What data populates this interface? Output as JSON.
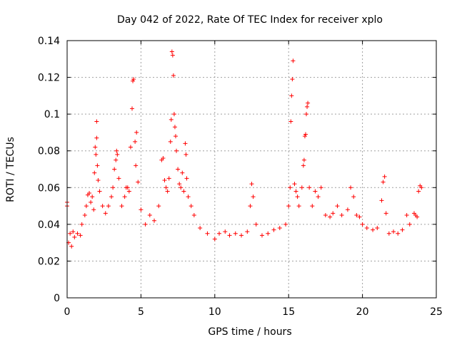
{
  "chart_data": {
    "type": "scatter",
    "title": "Day 042 of 2022, Rate Of TEC Index for receiver xplo",
    "xlabel": "GPS time / hours",
    "ylabel": "ROTI / TECUs",
    "xlim": [
      0,
      25
    ],
    "ylim": [
      0,
      0.14
    ],
    "x_ticks": [
      "0",
      "5",
      "10",
      "15",
      "20",
      "25"
    ],
    "y_ticks": [
      "0",
      "0.02",
      "0.04",
      "0.06",
      "0.08",
      "0.1",
      "0.12",
      "0.14"
    ],
    "grid": true,
    "marker": "plus",
    "color": "#ff0000",
    "series": [
      {
        "points": [
          [
            0.0,
            0.052
          ],
          [
            0.0,
            0.05
          ],
          [
            0.1,
            0.03
          ],
          [
            0.2,
            0.035
          ],
          [
            0.3,
            0.028
          ],
          [
            0.4,
            0.036
          ],
          [
            0.5,
            0.033
          ],
          [
            0.7,
            0.035
          ],
          [
            0.9,
            0.034
          ],
          [
            1.0,
            0.04
          ],
          [
            1.2,
            0.045
          ],
          [
            1.3,
            0.05
          ],
          [
            1.4,
            0.056
          ],
          [
            1.5,
            0.057
          ],
          [
            1.6,
            0.052
          ],
          [
            1.7,
            0.055
          ],
          [
            1.8,
            0.048
          ],
          [
            1.85,
            0.068
          ],
          [
            1.9,
            0.082
          ],
          [
            1.95,
            0.078
          ],
          [
            2.0,
            0.096
          ],
          [
            2.0,
            0.087
          ],
          [
            2.05,
            0.072
          ],
          [
            2.1,
            0.064
          ],
          [
            2.2,
            0.058
          ],
          [
            2.4,
            0.05
          ],
          [
            2.6,
            0.046
          ],
          [
            2.8,
            0.05
          ],
          [
            3.0,
            0.055
          ],
          [
            3.1,
            0.06
          ],
          [
            3.2,
            0.07
          ],
          [
            3.3,
            0.075
          ],
          [
            3.35,
            0.08
          ],
          [
            3.4,
            0.078
          ],
          [
            3.5,
            0.065
          ],
          [
            3.7,
            0.05
          ],
          [
            3.9,
            0.055
          ],
          [
            4.0,
            0.06
          ],
          [
            4.1,
            0.06
          ],
          [
            4.2,
            0.058
          ],
          [
            4.3,
            0.082
          ],
          [
            4.4,
            0.103
          ],
          [
            4.45,
            0.118
          ],
          [
            4.5,
            0.119
          ],
          [
            4.6,
            0.085
          ],
          [
            4.65,
            0.072
          ],
          [
            4.7,
            0.09
          ],
          [
            4.8,
            0.063
          ],
          [
            5.0,
            0.048
          ],
          [
            5.3,
            0.04
          ],
          [
            5.6,
            0.045
          ],
          [
            5.9,
            0.042
          ],
          [
            6.2,
            0.05
          ],
          [
            6.4,
            0.075
          ],
          [
            6.5,
            0.076
          ],
          [
            6.6,
            0.064
          ],
          [
            6.7,
            0.06
          ],
          [
            6.8,
            0.058
          ],
          [
            6.9,
            0.065
          ],
          [
            7.0,
            0.085
          ],
          [
            7.05,
            0.097
          ],
          [
            7.1,
            0.134
          ],
          [
            7.15,
            0.132
          ],
          [
            7.2,
            0.121
          ],
          [
            7.25,
            0.1
          ],
          [
            7.3,
            0.093
          ],
          [
            7.35,
            0.088
          ],
          [
            7.4,
            0.08
          ],
          [
            7.5,
            0.07
          ],
          [
            7.6,
            0.062
          ],
          [
            7.7,
            0.06
          ],
          [
            7.8,
            0.068
          ],
          [
            7.9,
            0.058
          ],
          [
            8.0,
            0.084
          ],
          [
            8.05,
            0.078
          ],
          [
            8.1,
            0.065
          ],
          [
            8.2,
            0.055
          ],
          [
            8.4,
            0.05
          ],
          [
            8.6,
            0.045
          ],
          [
            9.0,
            0.038
          ],
          [
            9.5,
            0.035
          ],
          [
            10.0,
            0.032
          ],
          [
            10.3,
            0.035
          ],
          [
            10.7,
            0.036
          ],
          [
            11.0,
            0.034
          ],
          [
            11.4,
            0.035
          ],
          [
            11.8,
            0.034
          ],
          [
            12.2,
            0.036
          ],
          [
            12.4,
            0.05
          ],
          [
            12.5,
            0.062
          ],
          [
            12.6,
            0.055
          ],
          [
            12.8,
            0.04
          ],
          [
            13.2,
            0.034
          ],
          [
            13.6,
            0.035
          ],
          [
            14.0,
            0.037
          ],
          [
            14.4,
            0.038
          ],
          [
            14.8,
            0.04
          ],
          [
            15.0,
            0.05
          ],
          [
            15.1,
            0.06
          ],
          [
            15.15,
            0.096
          ],
          [
            15.2,
            0.11
          ],
          [
            15.25,
            0.119
          ],
          [
            15.3,
            0.129
          ],
          [
            15.4,
            0.062
          ],
          [
            15.5,
            0.058
          ],
          [
            15.6,
            0.055
          ],
          [
            15.7,
            0.05
          ],
          [
            15.9,
            0.06
          ],
          [
            16.0,
            0.072
          ],
          [
            16.05,
            0.075
          ],
          [
            16.1,
            0.088
          ],
          [
            16.15,
            0.089
          ],
          [
            16.2,
            0.1
          ],
          [
            16.25,
            0.104
          ],
          [
            16.3,
            0.106
          ],
          [
            16.4,
            0.06
          ],
          [
            16.6,
            0.05
          ],
          [
            16.8,
            0.058
          ],
          [
            17.0,
            0.055
          ],
          [
            17.2,
            0.06
          ],
          [
            17.5,
            0.045
          ],
          [
            17.8,
            0.044
          ],
          [
            18.0,
            0.046
          ],
          [
            18.3,
            0.05
          ],
          [
            18.6,
            0.045
          ],
          [
            19.0,
            0.048
          ],
          [
            19.2,
            0.06
          ],
          [
            19.4,
            0.055
          ],
          [
            19.6,
            0.045
          ],
          [
            19.8,
            0.044
          ],
          [
            20.0,
            0.04
          ],
          [
            20.3,
            0.038
          ],
          [
            20.7,
            0.037
          ],
          [
            21.0,
            0.038
          ],
          [
            21.3,
            0.053
          ],
          [
            21.4,
            0.063
          ],
          [
            21.5,
            0.066
          ],
          [
            21.6,
            0.046
          ],
          [
            21.8,
            0.035
          ],
          [
            22.1,
            0.036
          ],
          [
            22.4,
            0.035
          ],
          [
            22.7,
            0.037
          ],
          [
            23.0,
            0.045
          ],
          [
            23.2,
            0.04
          ],
          [
            23.5,
            0.046
          ],
          [
            23.6,
            0.045
          ],
          [
            23.7,
            0.044
          ],
          [
            23.8,
            0.058
          ],
          [
            23.9,
            0.061
          ],
          [
            24.0,
            0.06
          ]
        ]
      }
    ]
  }
}
